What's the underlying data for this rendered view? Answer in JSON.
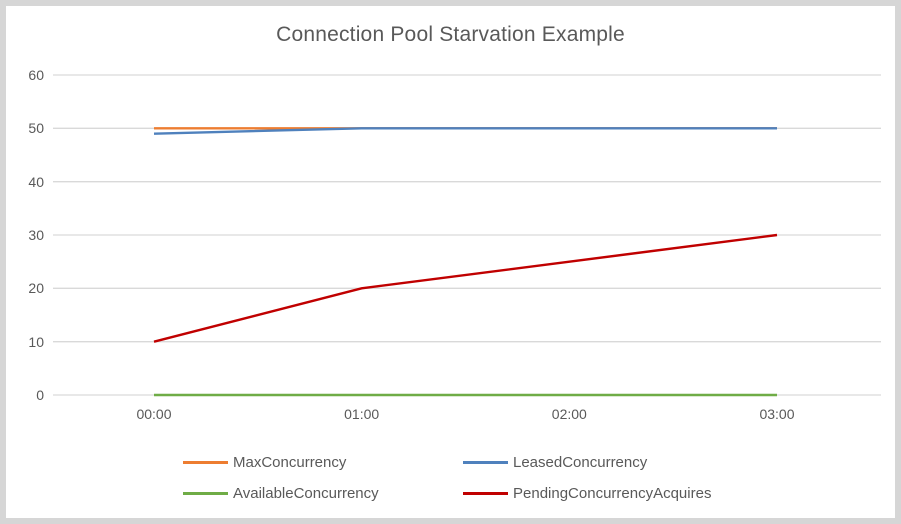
{
  "window": {
    "background_color": "#ffffff",
    "border_color": "#d6d6d6"
  },
  "chart_data": {
    "type": "line",
    "title": "Connection Pool Starvation Example",
    "x": [
      "00:00",
      "01:00",
      "02:00",
      "03:00"
    ],
    "series": [
      {
        "name": "MaxConcurrency",
        "color": "#ED7D31",
        "values": [
          50,
          50,
          50,
          50
        ]
      },
      {
        "name": "LeasedConcurrency",
        "color": "#4F81BD",
        "values": [
          49,
          50,
          50,
          50
        ]
      },
      {
        "name": "AvailableConcurrency",
        "color": "#6FAC46",
        "values": [
          0,
          0,
          0,
          0
        ]
      },
      {
        "name": "PendingConcurrencyAcquires",
        "color": "#C00000",
        "values": [
          10,
          20,
          25,
          30
        ]
      }
    ],
    "xlabel": "",
    "ylabel": "",
    "ylim": [
      0,
      60
    ],
    "yticks": [
      0,
      10,
      20,
      30,
      40,
      50,
      60
    ],
    "grid": true,
    "gridline_color": "#D9D9D9",
    "text_color": "#595959",
    "legend_position": "bottom"
  }
}
